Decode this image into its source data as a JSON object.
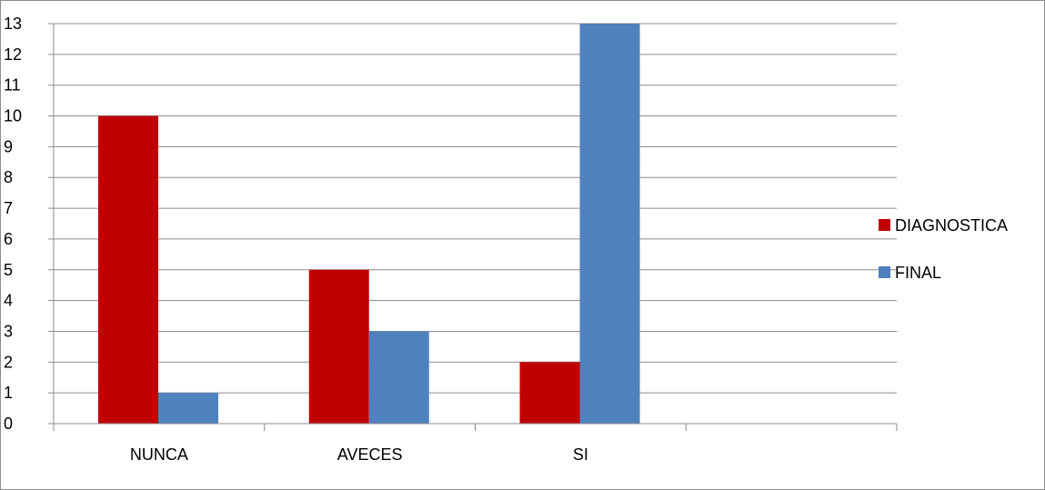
{
  "chart_data": {
    "type": "bar",
    "categories": [
      "NUNCA",
      "AVECES",
      "SI",
      ""
    ],
    "series": [
      {
        "name": "DIAGNOSTICA",
        "values": [
          10,
          5,
          2,
          null
        ],
        "color": "#C00000"
      },
      {
        "name": "FINAL",
        "values": [
          1,
          3,
          13,
          null
        ],
        "color": "#4F81BD"
      }
    ],
    "ylim": [
      0,
      13
    ],
    "yticks": [
      0,
      1,
      2,
      3,
      4,
      5,
      6,
      7,
      8,
      9,
      10,
      11,
      12,
      13
    ],
    "grid": true,
    "gridline_color": "#8c8c8c",
    "legend_position": "right",
    "title": "",
    "xlabel": "",
    "ylabel": ""
  }
}
